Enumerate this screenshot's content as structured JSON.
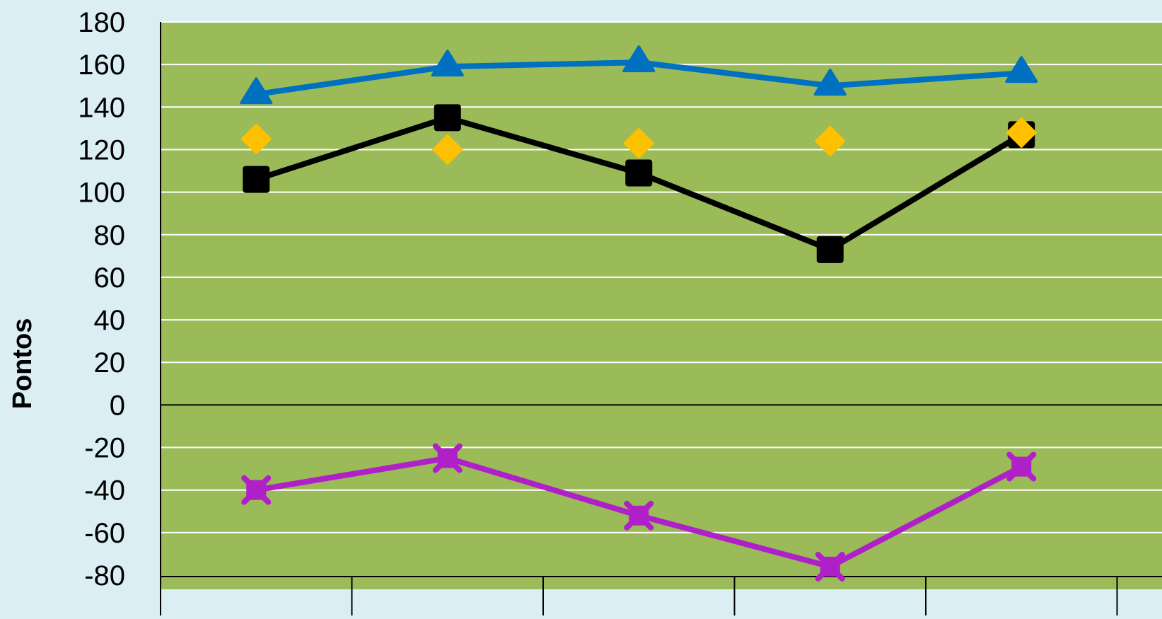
{
  "chart_data": {
    "type": "line",
    "xlabel": "",
    "ylabel": "Pontos",
    "ylim": [
      -80,
      180
    ],
    "yticks": [
      180,
      160,
      140,
      120,
      100,
      80,
      60,
      40,
      20,
      0,
      -20,
      -40,
      -60,
      -80
    ],
    "grid": true,
    "legend": "none",
    "plot_background": "#9bbb59",
    "page_background": "#daeef3",
    "series": [
      {
        "color": "#0070c0",
        "marker": "triangle",
        "line": true,
        "values": [
          146,
          159,
          161,
          150,
          156
        ]
      },
      {
        "color": "#000000",
        "marker": "square",
        "line": true,
        "values": [
          106,
          135,
          109,
          73,
          127
        ]
      },
      {
        "color": "#ffc000",
        "marker": "diamond",
        "line": false,
        "values": [
          125,
          120,
          123,
          124,
          128
        ]
      },
      {
        "color": "#b020c8",
        "marker": "x-square",
        "line": true,
        "values": [
          -40,
          -25,
          -52,
          -76,
          -29
        ]
      }
    ]
  }
}
